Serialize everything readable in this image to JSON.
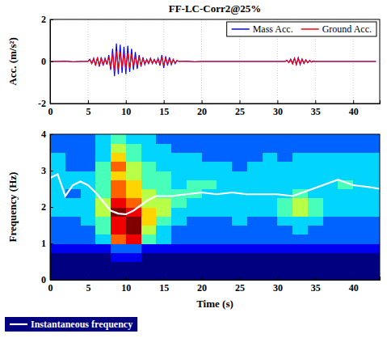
{
  "chart_data": [
    {
      "type": "line",
      "title": "FF-LC-Corr2@25%",
      "y_label": "Acc. (m/s²)",
      "x": [
        0,
        1,
        2,
        3,
        4,
        5,
        5.25,
        5.5,
        5.75,
        6,
        6.25,
        6.5,
        6.75,
        7,
        7.25,
        7.5,
        7.75,
        8,
        8.25,
        8.5,
        8.75,
        9,
        9.25,
        9.5,
        9.75,
        10,
        10.25,
        10.5,
        10.75,
        11,
        11.25,
        11.5,
        11.75,
        12,
        12.25,
        12.5,
        12.75,
        13,
        13.25,
        13.5,
        13.75,
        14,
        14.25,
        14.5,
        14.75,
        15,
        15.25,
        15.5,
        15.75,
        16,
        16.25,
        16.5,
        16.75,
        17,
        18,
        19,
        20,
        21,
        22,
        23,
        24,
        25,
        26,
        27,
        28,
        29,
        30,
        31,
        31.25,
        31.5,
        31.75,
        32,
        32.25,
        32.5,
        32.75,
        33,
        33.25,
        33.5,
        33.75,
        34,
        34.25,
        34.5,
        34.75,
        35,
        36,
        37,
        38,
        39,
        40,
        41,
        42,
        43
      ],
      "series": [
        {
          "name": "Mass Acc.",
          "color": "#0000ff",
          "values": [
            0,
            0,
            0.02,
            -0.02,
            0,
            0,
            0.1,
            -0.1,
            0.15,
            -0.2,
            0.2,
            -0.25,
            0.2,
            -0.2,
            0.15,
            -0.15,
            0.3,
            -0.4,
            0.6,
            -0.7,
            0.85,
            -0.6,
            0.8,
            -0.55,
            0.7,
            -0.6,
            0.75,
            -0.5,
            0.6,
            -0.4,
            0.45,
            -0.35,
            0.3,
            -0.25,
            0.2,
            -0.15,
            0.1,
            -0.1,
            0.15,
            -0.1,
            0.1,
            -0.1,
            0.15,
            -0.2,
            0.3,
            -0.3,
            0.25,
            -0.2,
            0.2,
            -0.15,
            0.1,
            -0.1,
            0.05,
            0,
            0.02,
            -0.02,
            0,
            0,
            0,
            0,
            0,
            0,
            0,
            0,
            0,
            0,
            0,
            0,
            0.05,
            -0.05,
            0.1,
            -0.1,
            0.15,
            -0.15,
            0.18,
            -0.15,
            0.12,
            -0.1,
            0.08,
            -0.06,
            0.05,
            -0.03,
            0.02,
            0,
            0,
            0,
            0,
            0,
            0,
            0,
            0,
            0
          ]
        },
        {
          "name": "Ground Acc.",
          "color": "#ff0000",
          "values": [
            0,
            0,
            0.01,
            -0.01,
            0,
            0,
            0.08,
            -0.1,
            0.12,
            -0.15,
            0.15,
            -0.2,
            0.15,
            -0.15,
            0.1,
            -0.1,
            0.2,
            -0.3,
            0.4,
            -0.5,
            0.5,
            -0.35,
            0.45,
            -0.3,
            0.4,
            -0.35,
            0.4,
            -0.3,
            0.35,
            -0.25,
            0.25,
            -0.2,
            0.2,
            -0.15,
            0.12,
            -0.1,
            0.08,
            -0.08,
            0.1,
            -0.08,
            0.08,
            -0.08,
            0.1,
            -0.12,
            0.2,
            -0.2,
            0.15,
            -0.12,
            0.12,
            -0.1,
            0.08,
            -0.06,
            0.04,
            0,
            0.01,
            -0.01,
            0,
            0,
            0,
            0,
            0,
            0,
            0,
            0,
            0,
            0,
            0,
            0,
            0.05,
            -0.06,
            0.1,
            -0.12,
            0.15,
            -0.14,
            0.15,
            -0.12,
            0.1,
            -0.08,
            0.06,
            -0.05,
            0.04,
            -0.02,
            0.01,
            0,
            0,
            0,
            0,
            0,
            0,
            0,
            0,
            0
          ]
        }
      ],
      "xlim": [
        0,
        43.5
      ],
      "xticks": [
        0,
        5,
        10,
        15,
        20,
        25,
        30,
        35,
        40
      ],
      "ylim": [
        -2,
        2
      ],
      "yticks": [
        -2,
        0,
        2
      ],
      "grid": true,
      "legend": "top-right"
    },
    {
      "type": "heatmap",
      "x_label": "Time (s)",
      "y_label": "Frequency (Hz)",
      "time_bins": [
        0,
        2,
        4,
        6,
        8,
        10,
        12,
        14,
        16,
        18,
        20,
        22,
        24,
        26,
        28,
        30,
        32,
        34,
        36,
        38,
        40,
        42,
        44
      ],
      "freq_bins": [
        0,
        0.25,
        0.5,
        0.75,
        1,
        1.25,
        1.5,
        1.75,
        2,
        2.25,
        2.5,
        2.75,
        3,
        3.25,
        3.5,
        3.75,
        4
      ],
      "color_range": [
        0,
        9
      ],
      "cells": [
        [
          0,
          0,
          0,
          0,
          0,
          0,
          0,
          0,
          0,
          0,
          0,
          0,
          0,
          0,
          0,
          0,
          0,
          0,
          0,
          0,
          0,
          0
        ],
        [
          0,
          0,
          0,
          0,
          0,
          0,
          0,
          0,
          0,
          0,
          0,
          0,
          0,
          0,
          0,
          0,
          0,
          0,
          0,
          0,
          0,
          0
        ],
        [
          0,
          0,
          0,
          0,
          1,
          1,
          0,
          0,
          0,
          0,
          0,
          0,
          0,
          0,
          0,
          0,
          0,
          0,
          0,
          0,
          0,
          0
        ],
        [
          1,
          1,
          1,
          1,
          2,
          2,
          1,
          1,
          1,
          1,
          1,
          1,
          1,
          1,
          1,
          1,
          1,
          1,
          1,
          1,
          1,
          1
        ],
        [
          2,
          2,
          2,
          3,
          7,
          8,
          4,
          3,
          2,
          2,
          2,
          2,
          2,
          2,
          2,
          2,
          2,
          2,
          2,
          2,
          2,
          2
        ],
        [
          2,
          2,
          2,
          4,
          8,
          9,
          5,
          3,
          2,
          2,
          2,
          2,
          2,
          2,
          2,
          2,
          3,
          2,
          2,
          2,
          2,
          2
        ],
        [
          2,
          2,
          3,
          4,
          8,
          9,
          6,
          4,
          3,
          2,
          2,
          2,
          3,
          2,
          2,
          3,
          3,
          3,
          2,
          2,
          2,
          2
        ],
        [
          3,
          3,
          3,
          5,
          9,
          8,
          6,
          5,
          3,
          3,
          3,
          3,
          3,
          3,
          3,
          4,
          5,
          4,
          3,
          3,
          3,
          3
        ],
        [
          3,
          3,
          3,
          5,
          8,
          7,
          5,
          5,
          4,
          3,
          3,
          3,
          3,
          3,
          3,
          4,
          5,
          4,
          3,
          3,
          3,
          3
        ],
        [
          3,
          2,
          3,
          4,
          7,
          6,
          5,
          4,
          4,
          4,
          3,
          3,
          3,
          3,
          3,
          3,
          4,
          3,
          3,
          3,
          3,
          3
        ],
        [
          3,
          3,
          3,
          4,
          7,
          6,
          4,
          4,
          3,
          4,
          4,
          3,
          3,
          3,
          3,
          3,
          3,
          3,
          3,
          4,
          3,
          3
        ],
        [
          3,
          3,
          3,
          4,
          6,
          5,
          4,
          4,
          3,
          3,
          3,
          3,
          3,
          3,
          3,
          3,
          3,
          3,
          3,
          3,
          3,
          3
        ],
        [
          3,
          2,
          2,
          4,
          7,
          5,
          4,
          3,
          3,
          3,
          3,
          3,
          2,
          3,
          3,
          3,
          3,
          3,
          3,
          3,
          3,
          3
        ],
        [
          3,
          2,
          2,
          3,
          6,
          4,
          3,
          3,
          3,
          3,
          2,
          2,
          2,
          2,
          3,
          2,
          3,
          3,
          3,
          3,
          3,
          3
        ],
        [
          2,
          2,
          2,
          3,
          5,
          4,
          3,
          3,
          2,
          2,
          2,
          2,
          2,
          2,
          2,
          2,
          2,
          2,
          2,
          2,
          2,
          2
        ],
        [
          2,
          2,
          2,
          3,
          4,
          3,
          3,
          2,
          2,
          2,
          2,
          2,
          2,
          2,
          2,
          2,
          2,
          2,
          2,
          2,
          2,
          2
        ]
      ],
      "x": [
        0,
        1,
        2,
        3,
        4,
        5,
        6,
        7,
        8,
        9,
        10,
        11,
        12,
        13,
        14,
        15,
        16,
        18,
        20,
        22,
        24,
        26,
        28,
        30,
        32,
        34,
        36,
        38,
        40,
        42,
        43.5
      ],
      "series": [
        {
          "name": "Instantaneous frequency",
          "color": "#ffffff",
          "values": [
            2.8,
            2.9,
            2.3,
            2.6,
            2.7,
            2.6,
            2.4,
            2.15,
            1.9,
            1.82,
            1.8,
            1.9,
            2.05,
            2.2,
            2.3,
            2.3,
            2.3,
            2.35,
            2.4,
            2.35,
            2.4,
            2.35,
            2.35,
            2.35,
            2.3,
            2.45,
            2.6,
            2.75,
            2.6,
            2.55,
            2.5
          ]
        }
      ],
      "xlim": [
        0,
        43.5
      ],
      "xticks": [
        0,
        5,
        10,
        15,
        20,
        25,
        30,
        35,
        40
      ],
      "ylim": [
        0,
        4
      ],
      "yticks": [
        0,
        1,
        2,
        3,
        4
      ],
      "grid": false,
      "legend": "bottom-left"
    }
  ]
}
